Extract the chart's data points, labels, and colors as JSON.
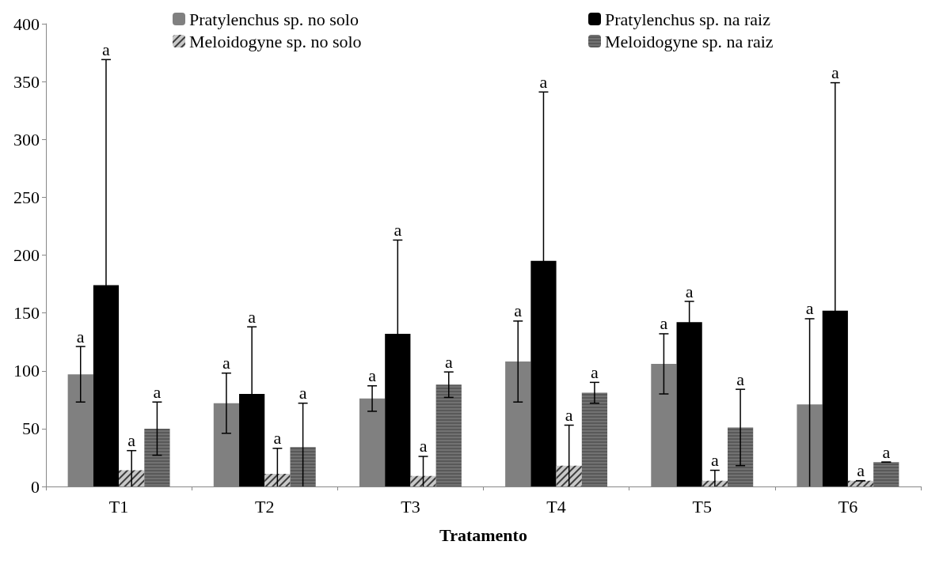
{
  "chart_data": {
    "type": "bar",
    "xlabel": "Tratamento",
    "categories": [
      "T1",
      "T2",
      "T3",
      "T4",
      "T5",
      "T6"
    ],
    "series": [
      {
        "name": "Pratylenchus sp. no solo",
        "color": "#808080",
        "values": [
          97,
          72,
          76,
          108,
          106,
          71
        ],
        "errors": [
          24,
          26,
          11,
          35,
          26,
          [
            0,
            145
          ]
        ]
      },
      {
        "name": "Pratylenchus sp. na raiz",
        "color": "#000000",
        "values": [
          174,
          80,
          132,
          195,
          142,
          152
        ],
        "errors": [
          [
            0,
            369
          ],
          58,
          81,
          146,
          18,
          [
            0,
            349
          ]
        ]
      },
      {
        "name": "Meloidogyne sp. no solo",
        "color": "#c8c8c8",
        "values": [
          14,
          11,
          9,
          18,
          5,
          5
        ],
        "errors": [
          [
            0,
            31
          ],
          [
            0,
            33
          ],
          [
            0,
            26
          ],
          [
            0,
            53
          ],
          [
            0,
            14
          ],
          0
        ]
      },
      {
        "name": "Meloidogyne sp. na raiz",
        "color": "#595959",
        "values": [
          50,
          34,
          88,
          81,
          51,
          21
        ],
        "errors": [
          23,
          [
            0,
            72
          ],
          11,
          9,
          33,
          0
        ]
      }
    ],
    "annotations": [
      "a",
      "a",
      "a",
      "a",
      "a",
      "a",
      "a",
      "a",
      "a",
      "a",
      "a",
      "a",
      "a",
      "a",
      "a",
      "a",
      "a",
      "a",
      "a",
      "a",
      "a",
      "a",
      "a",
      "a"
    ],
    "ylim": [
      0,
      400
    ],
    "yticks": [
      0,
      50,
      100,
      150,
      200,
      250,
      300,
      350,
      400
    ],
    "grid": false,
    "legend": "top"
  }
}
